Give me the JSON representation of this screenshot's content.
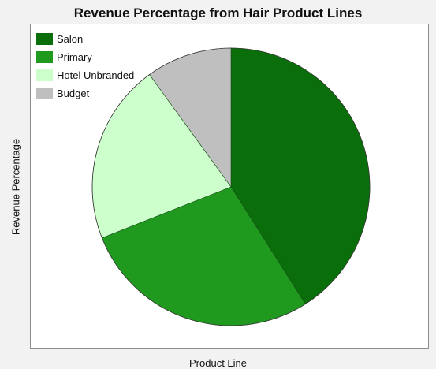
{
  "chart_data": {
    "type": "pie",
    "title": "Revenue Percentage from Hair Product Lines",
    "xlabel": "Product Line",
    "ylabel": "Revenue Percentage",
    "categories": [
      "Salon",
      "Primary",
      "Hotel Unbranded",
      "Budget"
    ],
    "values": [
      41,
      28,
      21,
      10
    ],
    "colors": [
      "#0a6e0a",
      "#1f9a1f",
      "#ccffcc",
      "#bfbfbf"
    ],
    "legend_position": "top-left",
    "grid": false
  }
}
